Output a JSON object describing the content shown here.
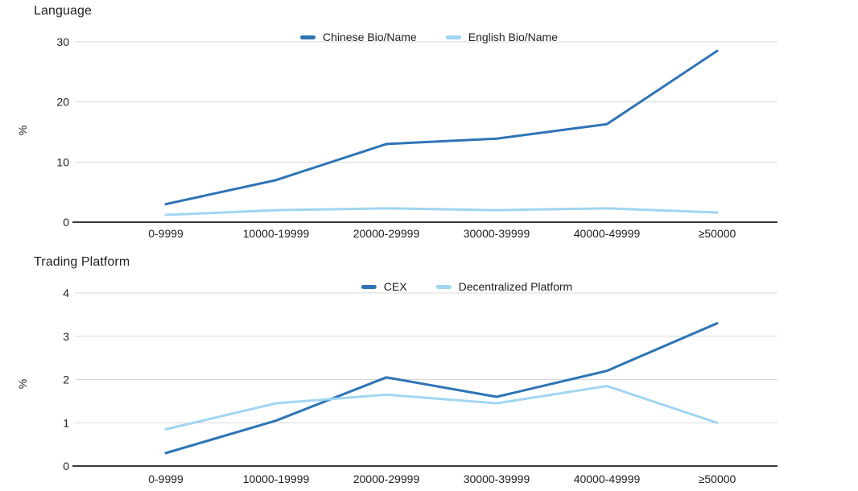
{
  "page": {
    "background": "#ffffff"
  },
  "colors": {
    "series_dark": "#2E74B5",
    "series_light": "#A0D5F1",
    "gridline": "#d9d9d9",
    "axis": "#37393b",
    "text": "#1c1e21"
  },
  "chart_data": [
    {
      "type": "line",
      "title": "Language",
      "xlabel": "",
      "ylabel": "%",
      "categories": [
        "0-9999",
        "10000-19999",
        "20000-29999",
        "30000-39999",
        "40000-49999",
        "≥50000"
      ],
      "yticks": [
        0,
        10,
        20,
        30
      ],
      "ylim": [
        0,
        30
      ],
      "grid": true,
      "legend_position": "top-center",
      "series": [
        {
          "name": "Chinese Bio/Name",
          "color": "#2E74B5",
          "values": [
            3.0,
            7.0,
            13.0,
            13.9,
            16.3,
            28.5
          ]
        },
        {
          "name": "English Bio/Name",
          "color": "#A0D5F1",
          "values": [
            1.2,
            2.0,
            2.3,
            2.0,
            2.3,
            1.6
          ]
        }
      ]
    },
    {
      "type": "line",
      "title": "Trading Platform",
      "xlabel": "",
      "ylabel": "%",
      "categories": [
        "0-9999",
        "10000-19999",
        "20000-29999",
        "30000-39999",
        "40000-49999",
        "≥50000"
      ],
      "yticks": [
        0,
        1,
        2,
        3,
        4
      ],
      "ylim": [
        0,
        4
      ],
      "grid": true,
      "legend_position": "top-center",
      "series": [
        {
          "name": "CEX",
          "color": "#2E74B5",
          "values": [
            0.3,
            1.05,
            2.05,
            1.6,
            2.2,
            3.3
          ]
        },
        {
          "name": "Decentralized Platform",
          "color": "#A0D5F1",
          "values": [
            0.85,
            1.45,
            1.65,
            1.45,
            1.85,
            1.0
          ]
        }
      ]
    }
  ]
}
